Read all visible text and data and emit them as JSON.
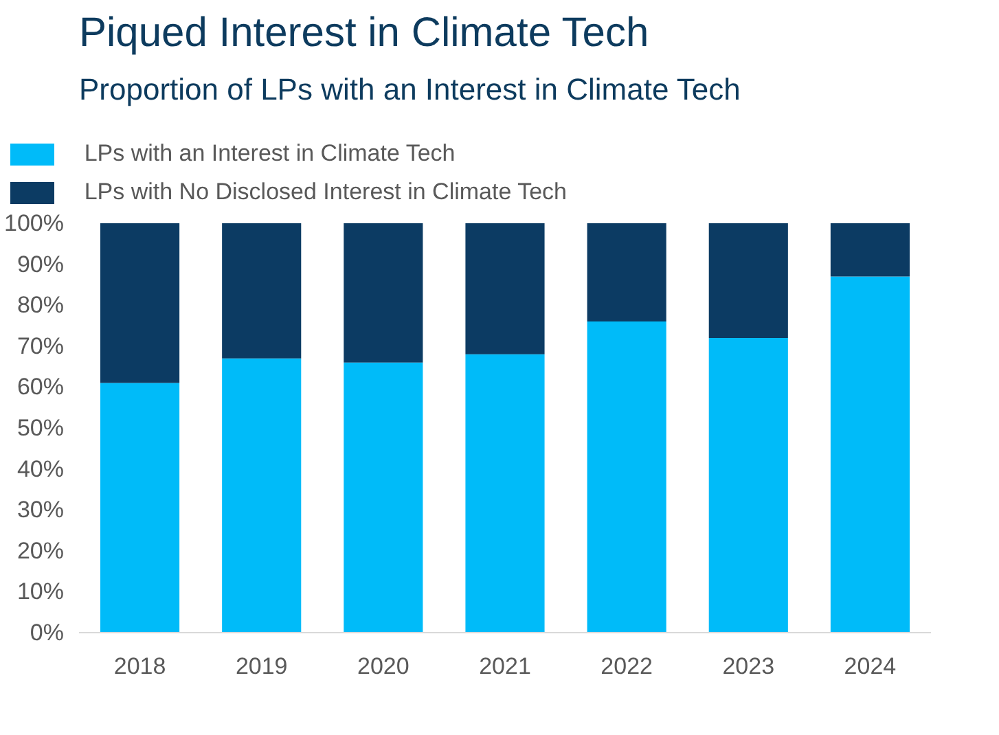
{
  "chart_data": {
    "type": "bar",
    "title": "Piqued Interest in Climate Tech",
    "subtitle": "Proportion of LPs with an Interest in Climate Tech",
    "categories": [
      "2018",
      "2019",
      "2020",
      "2021",
      "2022",
      "2023",
      "2024"
    ],
    "stacked": true,
    "series": [
      {
        "name": "LPs with an Interest in Climate Tech",
        "color": "#00bbf9",
        "values": [
          61,
          67,
          66,
          68,
          76,
          72,
          87
        ]
      },
      {
        "name": "LPs with No Disclosed Interest in Climate Tech",
        "color": "#0c3b63",
        "values": [
          39,
          33,
          34,
          32,
          24,
          28,
          13
        ]
      }
    ],
    "ylim": [
      0,
      100
    ],
    "yticks": [
      {
        "value": 0,
        "label": "0%"
      },
      {
        "value": 10,
        "label": "10%"
      },
      {
        "value": 20,
        "label": "20%"
      },
      {
        "value": 30,
        "label": "30%"
      },
      {
        "value": 40,
        "label": "40%"
      },
      {
        "value": 50,
        "label": "50%"
      },
      {
        "value": 60,
        "label": "60%"
      },
      {
        "value": 70,
        "label": "70%"
      },
      {
        "value": 80,
        "label": "80%"
      },
      {
        "value": 90,
        "label": "90%"
      },
      {
        "value": 100,
        "label": "100%"
      }
    ],
    "grid": false,
    "legend": "top"
  }
}
